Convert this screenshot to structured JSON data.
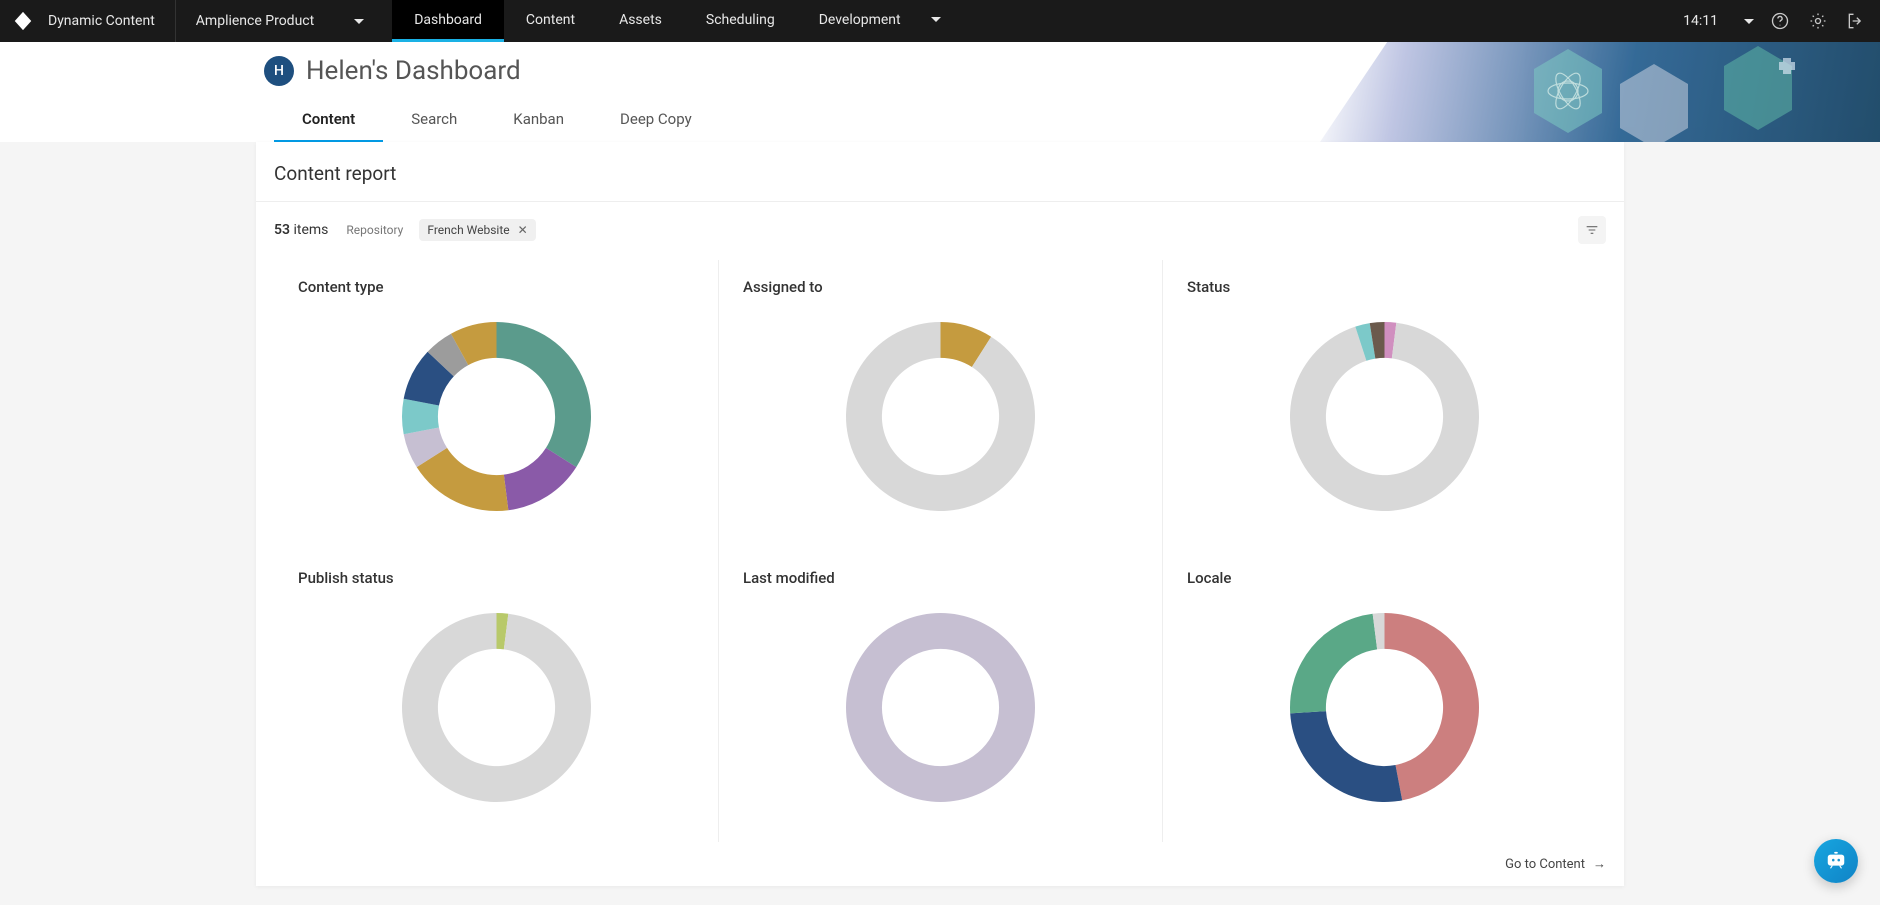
{
  "brand": "Dynamic Content",
  "product_dropdown": "Amplience Product",
  "nav": {
    "dashboard": "Dashboard",
    "content": "Content",
    "assets": "Assets",
    "scheduling": "Scheduling",
    "development": "Development"
  },
  "time": "14:11",
  "avatar_letter": "H",
  "page_title": "Helen's Dashboard",
  "tabs": {
    "content": "Content",
    "search": "Search",
    "kanban": "Kanban",
    "deep_copy": "Deep Copy"
  },
  "report_title": "Content report",
  "item_count": "53",
  "item_count_label": "items",
  "repo_label": "Repository",
  "filter_chip": "French Website",
  "go_link": "Go to Content",
  "charts": {
    "content_type": {
      "title": "Content type",
      "type": "donut",
      "inner_radius": 0.62,
      "segments": [
        {
          "value": 34,
          "color": "#5b9b8c"
        },
        {
          "value": 14,
          "color": "#8a5aa8"
        },
        {
          "value": 18,
          "color": "#c59b3f"
        },
        {
          "value": 6,
          "color": "#c6bfd2"
        },
        {
          "value": 6,
          "color": "#7cc9c9"
        },
        {
          "value": 9,
          "color": "#2a4f82"
        },
        {
          "value": 5,
          "color": "#9c9c9c"
        },
        {
          "value": 8,
          "color": "#c59b3f"
        }
      ]
    },
    "assigned_to": {
      "title": "Assigned to",
      "type": "donut",
      "inner_radius": 0.62,
      "segments": [
        {
          "value": 9,
          "color": "#c59b3f"
        },
        {
          "value": 91,
          "color": "#d8d8d8"
        }
      ]
    },
    "status": {
      "title": "Status",
      "type": "donut",
      "inner_radius": 0.62,
      "segments": [
        {
          "value": 2,
          "color": "#d08fbf"
        },
        {
          "value": 93,
          "color": "#d8d8d8"
        },
        {
          "value": 2.5,
          "color": "#7cc9c9"
        },
        {
          "value": 2.5,
          "color": "#6b5a4c"
        }
      ]
    },
    "publish_status": {
      "title": "Publish status",
      "type": "donut",
      "inner_radius": 0.62,
      "segments": [
        {
          "value": 2,
          "color": "#b8c96a"
        },
        {
          "value": 98,
          "color": "#d8d8d8"
        }
      ]
    },
    "last_modified": {
      "title": "Last modified",
      "type": "donut",
      "inner_radius": 0.62,
      "segments": [
        {
          "value": 100,
          "color": "#c6bfd2"
        }
      ]
    },
    "locale": {
      "title": "Locale",
      "type": "donut",
      "inner_radius": 0.62,
      "segments": [
        {
          "value": 47,
          "color": "#cc7f7f"
        },
        {
          "value": 27,
          "color": "#2a4f82"
        },
        {
          "value": 24,
          "color": "#5aa887"
        },
        {
          "value": 2,
          "color": "#d8d8d8"
        }
      ]
    }
  }
}
